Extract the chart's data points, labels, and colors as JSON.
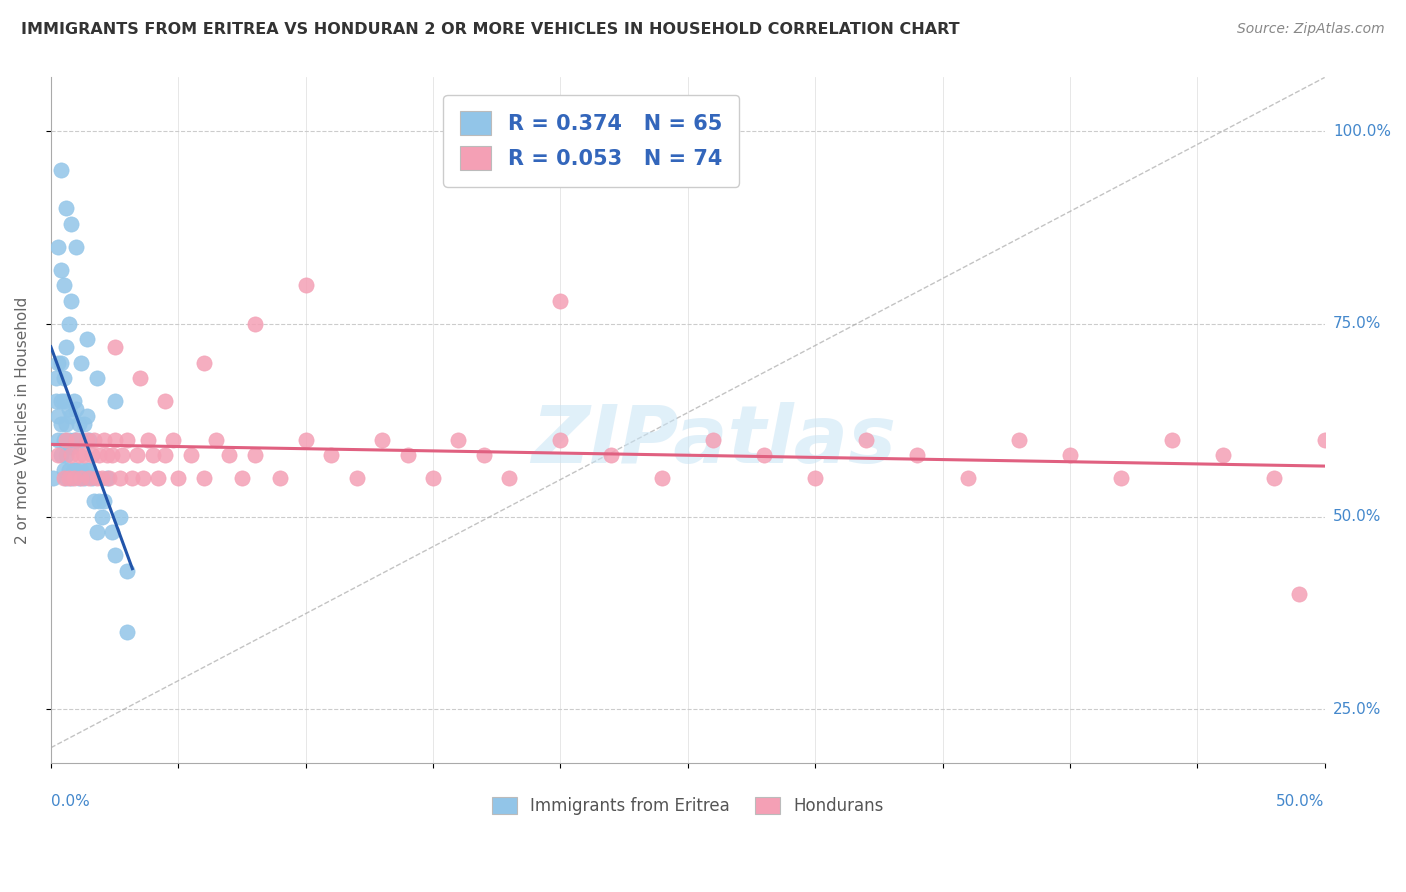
{
  "title": "IMMIGRANTS FROM ERITREA VS HONDURAN 2 OR MORE VEHICLES IN HOUSEHOLD CORRELATION CHART",
  "source": "Source: ZipAtlas.com",
  "ylabel": "2 or more Vehicles in Household",
  "ytick_vals": [
    0.25,
    0.5,
    0.75,
    1.0
  ],
  "ytick_labels": [
    "25.0%",
    "50.0%",
    "75.0%",
    "100.0%"
  ],
  "xmin": 0.0,
  "xmax": 0.5,
  "ymin": 0.18,
  "ymax": 1.07,
  "legend_label1": "R = 0.374   N = 65",
  "legend_label2": "R = 0.053   N = 74",
  "legend_sublabel1": "Immigrants from Eritrea",
  "legend_sublabel2": "Hondurans",
  "color_blue": "#92c5e8",
  "color_pink": "#f4a0b5",
  "trendline_blue": "#2255aa",
  "trendline_pink": "#e06080",
  "watermark": "ZIPatlas",
  "blue_x": [
    0.001,
    0.002,
    0.002,
    0.003,
    0.003,
    0.003,
    0.004,
    0.004,
    0.004,
    0.004,
    0.005,
    0.005,
    0.005,
    0.005,
    0.006,
    0.006,
    0.006,
    0.007,
    0.007,
    0.007,
    0.008,
    0.008,
    0.008,
    0.009,
    0.009,
    0.009,
    0.01,
    0.01,
    0.01,
    0.011,
    0.011,
    0.012,
    0.012,
    0.013,
    0.013,
    0.014,
    0.014,
    0.015,
    0.015,
    0.016,
    0.017,
    0.018,
    0.019,
    0.02,
    0.021,
    0.022,
    0.024,
    0.025,
    0.027,
    0.03,
    0.014,
    0.008,
    0.006,
    0.005,
    0.003,
    0.004,
    0.007,
    0.012,
    0.018,
    0.025,
    0.006,
    0.004,
    0.008,
    0.01,
    0.03
  ],
  "blue_y": [
    0.55,
    0.65,
    0.68,
    0.6,
    0.63,
    0.7,
    0.58,
    0.62,
    0.65,
    0.7,
    0.56,
    0.6,
    0.65,
    0.68,
    0.55,
    0.58,
    0.62,
    0.56,
    0.6,
    0.64,
    0.55,
    0.59,
    0.63,
    0.56,
    0.6,
    0.65,
    0.56,
    0.6,
    0.64,
    0.55,
    0.62,
    0.56,
    0.6,
    0.55,
    0.62,
    0.56,
    0.63,
    0.56,
    0.6,
    0.55,
    0.52,
    0.48,
    0.52,
    0.5,
    0.52,
    0.55,
    0.48,
    0.45,
    0.5,
    0.43,
    0.73,
    0.78,
    0.72,
    0.8,
    0.85,
    0.82,
    0.75,
    0.7,
    0.68,
    0.65,
    0.9,
    0.95,
    0.88,
    0.85,
    0.35
  ],
  "pink_x": [
    0.003,
    0.005,
    0.006,
    0.007,
    0.008,
    0.009,
    0.01,
    0.011,
    0.012,
    0.013,
    0.014,
    0.015,
    0.016,
    0.017,
    0.018,
    0.019,
    0.02,
    0.021,
    0.022,
    0.023,
    0.024,
    0.025,
    0.027,
    0.028,
    0.03,
    0.032,
    0.034,
    0.036,
    0.038,
    0.04,
    0.042,
    0.045,
    0.048,
    0.05,
    0.055,
    0.06,
    0.065,
    0.07,
    0.075,
    0.08,
    0.09,
    0.1,
    0.11,
    0.12,
    0.13,
    0.14,
    0.15,
    0.16,
    0.17,
    0.18,
    0.2,
    0.22,
    0.24,
    0.26,
    0.28,
    0.3,
    0.32,
    0.34,
    0.36,
    0.38,
    0.4,
    0.42,
    0.44,
    0.46,
    0.48,
    0.5,
    0.025,
    0.035,
    0.045,
    0.06,
    0.08,
    0.1,
    0.2,
    0.49
  ],
  "pink_y": [
    0.58,
    0.55,
    0.6,
    0.55,
    0.58,
    0.55,
    0.6,
    0.58,
    0.55,
    0.58,
    0.6,
    0.55,
    0.58,
    0.6,
    0.55,
    0.58,
    0.55,
    0.6,
    0.58,
    0.55,
    0.58,
    0.6,
    0.55,
    0.58,
    0.6,
    0.55,
    0.58,
    0.55,
    0.6,
    0.58,
    0.55,
    0.58,
    0.6,
    0.55,
    0.58,
    0.55,
    0.6,
    0.58,
    0.55,
    0.58,
    0.55,
    0.6,
    0.58,
    0.55,
    0.6,
    0.58,
    0.55,
    0.6,
    0.58,
    0.55,
    0.6,
    0.58,
    0.55,
    0.6,
    0.58,
    0.55,
    0.6,
    0.58,
    0.55,
    0.6,
    0.58,
    0.55,
    0.6,
    0.58,
    0.55,
    0.6,
    0.72,
    0.68,
    0.65,
    0.7,
    0.75,
    0.8,
    0.78,
    0.4
  ]
}
